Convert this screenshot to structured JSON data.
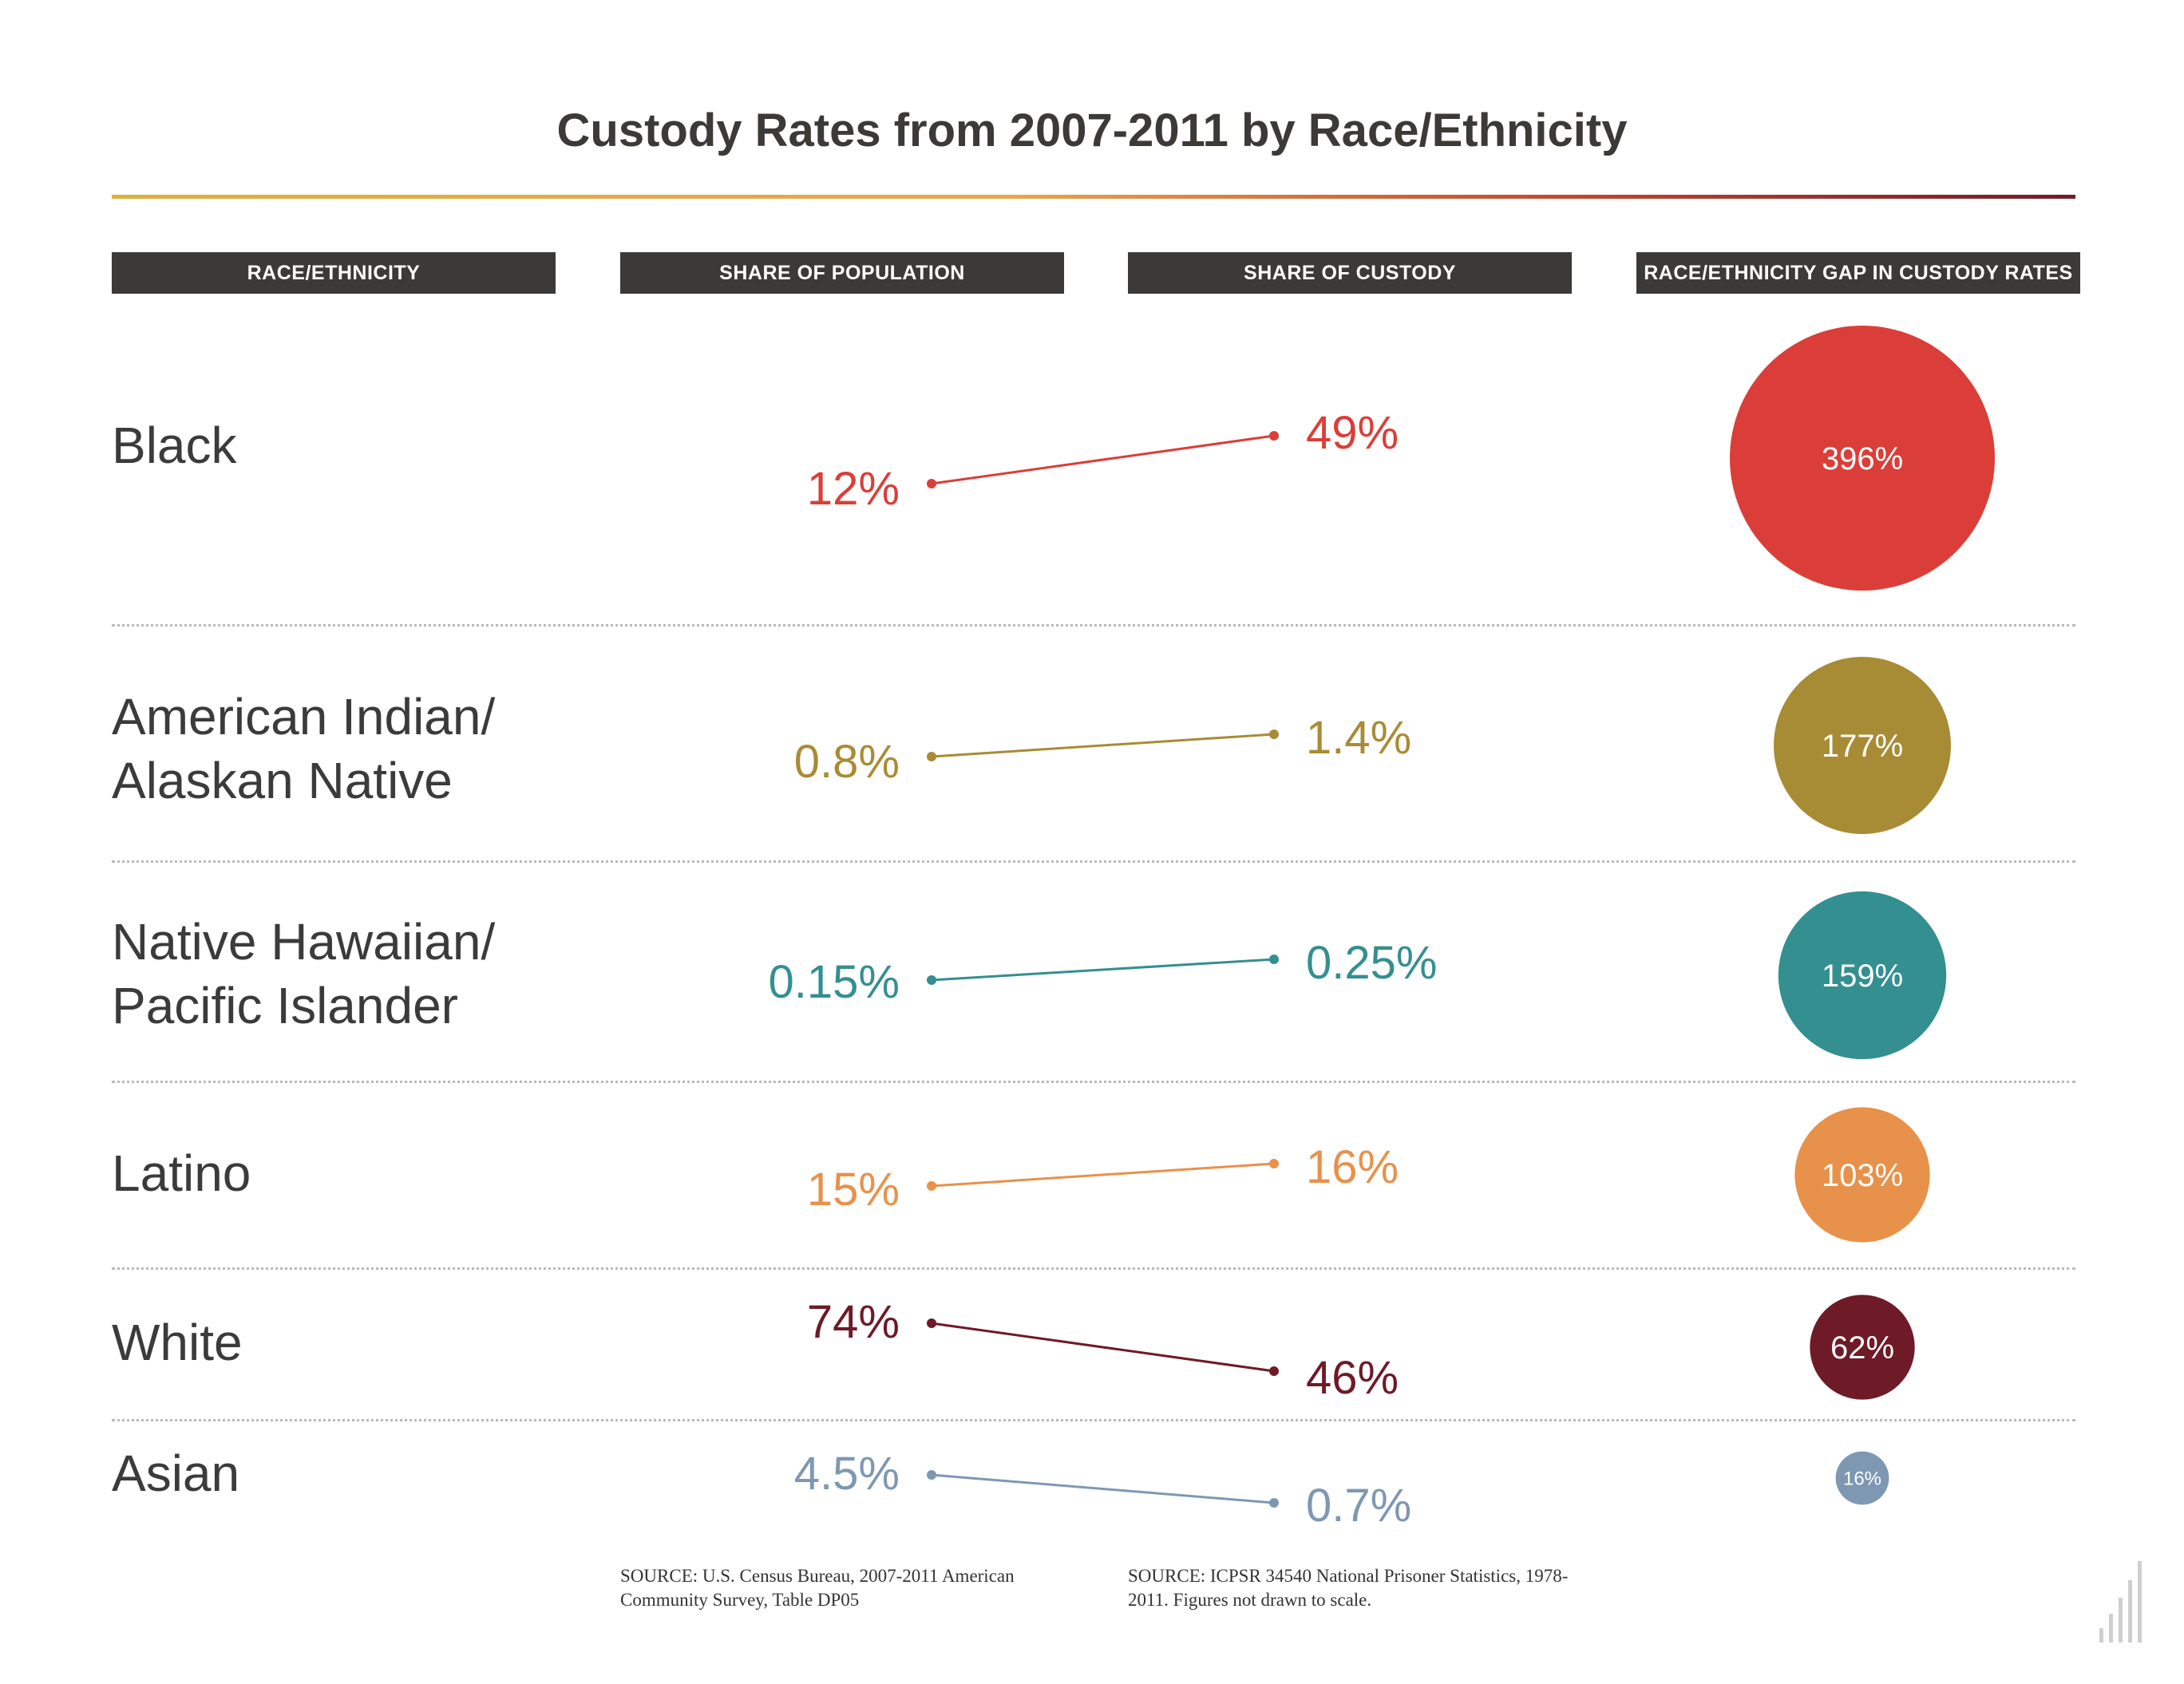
{
  "title": "Custody Rates from 2007-2011 by Race/Ethnicity",
  "columns": {
    "race": "RACE/ETHNICITY",
    "population": "SHARE OF POPULATION",
    "custody": "SHARE OF CUSTODY",
    "gap": "RACE/ETHNICITY GAP IN CUSTODY RATES"
  },
  "sources": {
    "population": "SOURCE: U.S. Census Bureau, 2007-2011 American Community Survey, Table DP05",
    "custody": "SOURCE: ICPSR 34540 National Prisoner Statistics, 1978-2011. Figures not drawn to scale."
  },
  "chart_data": {
    "type": "slope",
    "title": "Custody Rates from 2007-2011 by Race/Ethnicity",
    "categories": [
      "Black",
      "American Indian/ Alaskan Native",
      "Native Hawaiian/ Pacific Islander",
      "Latino",
      "White",
      "Asian"
    ],
    "rows": [
      {
        "label": "Black",
        "population": 12,
        "population_label": "12%",
        "custody": 49,
        "custody_label": "49%",
        "gap": 396,
        "gap_label": "396%",
        "color": "#db3e39"
      },
      {
        "label": "American Indian/\nAlaskan Native",
        "population": 0.8,
        "population_label": "0.8%",
        "custody": 1.4,
        "custody_label": "1.4%",
        "gap": 177,
        "gap_label": "177%",
        "color": "#a88c35"
      },
      {
        "label": "Native Hawaiian/\nPacific Islander",
        "population": 0.15,
        "population_label": "0.15%",
        "custody": 0.25,
        "custody_label": "0.25%",
        "gap": 159,
        "gap_label": "159%",
        "color": "#348f90"
      },
      {
        "label": "Latino",
        "population": 15,
        "population_label": "15%",
        "custody": 16,
        "custody_label": "16%",
        "gap": 103,
        "gap_label": "103%",
        "color": "#e8914b"
      },
      {
        "label": "White",
        "population": 74,
        "population_label": "74%",
        "custody": 46,
        "custody_label": "46%",
        "gap": 62,
        "gap_label": "62%",
        "color": "#6e1a27"
      },
      {
        "label": "Asian",
        "population": 4.5,
        "population_label": "4.5%",
        "custody": 0.7,
        "custody_label": "0.7%",
        "gap": 16,
        "gap_label": "16%",
        "color": "#7e98b3"
      }
    ],
    "note": "Figures not drawn to scale."
  }
}
